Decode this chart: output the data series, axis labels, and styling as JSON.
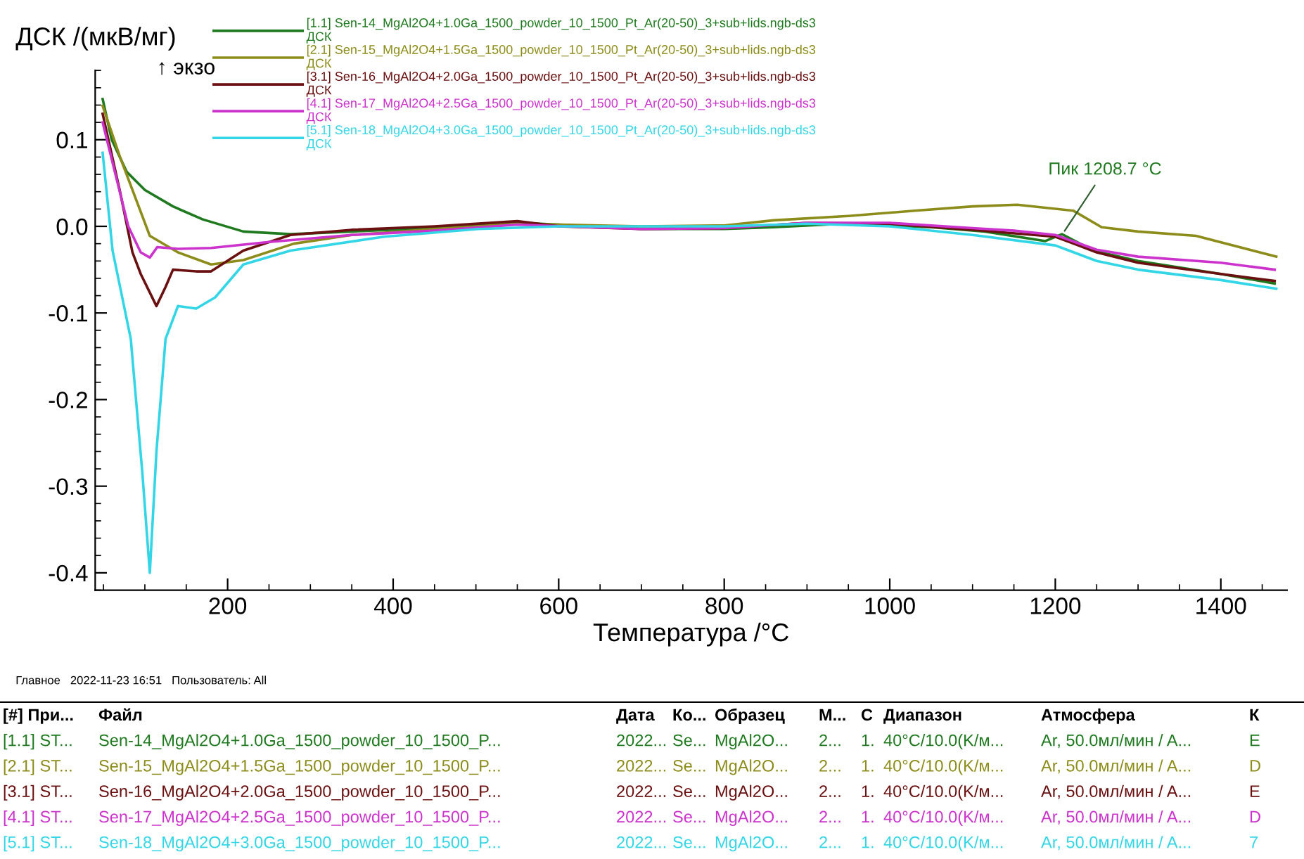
{
  "chart_data": [
    {
      "type": "line",
      "xlabel": "Температура /°C",
      "ylabel": "ДСК /(мкВ/мг)",
      "xlim": [
        40,
        1480
      ],
      "ylim": [
        -0.42,
        0.18
      ],
      "xticks": [
        200,
        400,
        600,
        800,
        1000,
        1200,
        1400
      ],
      "yticks": [
        {
          "value": 0.1,
          "label": "0.1"
        },
        {
          "value": 0.0,
          "label": "0.0"
        },
        {
          "value": -0.1,
          "label": "-0.1"
        },
        {
          "value": -0.2,
          "label": "-0.2"
        },
        {
          "value": -0.3,
          "label": "-0.3"
        },
        {
          "value": -0.4,
          "label": "-0.4"
        }
      ],
      "grid": false,
      "legend": "top",
      "marker": "none",
      "line_style": "solid",
      "annotations": [
        "↑ экзо",
        {
          "text": "Пик 1208.7 °C",
          "x": 1208.7,
          "y": -0.009
        },
        "Главное   2022-11-23 16:51   Пользователь: All"
      ],
      "series": [
        {
          "name": "[1.1] Sen-14_MgAl2O4+1.0Ga_1500_powder_10_1500_Pt_Ar(20-50)_3+sub+lids.ngb-ds3\nДСК",
          "color": "#1f7a1f",
          "x": [
            49,
            60,
            78,
            100,
            134,
            170,
            219,
            276,
            350,
            450,
            550,
            600,
            700,
            800,
            860,
            945,
            1050,
            1115,
            1188,
            1208,
            1246,
            1300,
            1400,
            1465
          ],
          "values": [
            0.147,
            0.1,
            0.063,
            0.042,
            0.023,
            0.008,
            -0.006,
            -0.009,
            -0.006,
            -0.002,
            0.004,
            0.002,
            -0.003,
            -0.003,
            -0.001,
            0.003,
            -0.001,
            -0.006,
            -0.017,
            -0.009,
            -0.028,
            -0.04,
            -0.055,
            -0.066
          ]
        },
        {
          "name": "[2.1] Sen-15_MgAl2O4+1.5Ga_1500_powder_10_1500_Pt_Ar(20-50)_3+sub+lids.ngb-ds3\nДСК",
          "color": "#8c8c1a",
          "x": [
            49,
            70,
            106,
            140,
            180,
            219,
            280,
            350,
            450,
            550,
            700,
            800,
            860,
            950,
            1030,
            1100,
            1154,
            1222,
            1256,
            1300,
            1370,
            1467
          ],
          "values": [
            0.139,
            0.08,
            -0.011,
            -0.03,
            -0.044,
            -0.039,
            -0.02,
            -0.01,
            -0.003,
            0.003,
            0.0,
            0.001,
            0.007,
            0.012,
            0.018,
            0.023,
            0.025,
            0.018,
            -0.001,
            -0.006,
            -0.011,
            -0.035
          ]
        },
        {
          "name": "[3.1] Sen-16_MgAl2O4+2.0Ga_1500_powder_10_1500_Pt_Ar(20-50)_3+sub+lids.ngb-ds3\nДСК",
          "color": "#6b1010",
          "x": [
            49,
            70,
            85,
            95,
            114,
            125,
            134,
            162,
            180,
            219,
            276,
            350,
            450,
            550,
            600,
            700,
            800,
            900,
            1000,
            1100,
            1200,
            1250,
            1300,
            1400,
            1465
          ],
          "values": [
            0.13,
            0.04,
            -0.03,
            -0.055,
            -0.092,
            -0.07,
            -0.05,
            -0.052,
            -0.052,
            -0.028,
            -0.01,
            -0.004,
            0.0,
            0.006,
            0.0,
            -0.003,
            -0.002,
            0.004,
            0.003,
            -0.004,
            -0.012,
            -0.03,
            -0.042,
            -0.055,
            -0.063
          ]
        },
        {
          "name": "[4.1] Sen-17_MgAl2O4+2.5Ga_1500_powder_10_1500_Pt_Ar(20-50)_3+sub+lids.ngb-ds3\nДСК",
          "color": "#cc33cc",
          "x": [
            49,
            80,
            95,
            106,
            115,
            140,
            180,
            250,
            350,
            450,
            550,
            700,
            800,
            900,
            1000,
            1100,
            1150,
            1200,
            1250,
            1300,
            1400,
            1465
          ],
          "values": [
            0.12,
            0.0,
            -0.03,
            -0.036,
            -0.024,
            -0.026,
            -0.025,
            -0.018,
            -0.01,
            -0.005,
            0.002,
            -0.003,
            -0.002,
            0.004,
            0.004,
            -0.002,
            -0.005,
            -0.01,
            -0.027,
            -0.035,
            -0.042,
            -0.05
          ]
        },
        {
          "name": "[5.1] Sen-18_MgAl2O4+3.0Ga_1500_powder_10_1500_Pt_Ar(20-50)_3+sub+lids.ngb-ds3\nДСК",
          "color": "#33d6e6",
          "x": [
            49,
            61,
            83,
            97,
            106,
            114,
            125,
            140,
            162,
            185,
            219,
            276,
            389,
            503,
            600,
            800,
            900,
            1000,
            1100,
            1200,
            1250,
            1300,
            1400,
            1467
          ],
          "values": [
            0.085,
            -0.028,
            -0.13,
            -0.285,
            -0.4,
            -0.26,
            -0.13,
            -0.092,
            -0.095,
            -0.082,
            -0.044,
            -0.028,
            -0.012,
            -0.003,
            0.0,
            0.0,
            0.003,
            0.0,
            -0.01,
            -0.022,
            -0.04,
            -0.05,
            -0.062,
            -0.072
          ]
        }
      ]
    },
    {
      "type": "other",
      "categories": [
        "[#] При...",
        "Файл",
        "Дата",
        "Ко...",
        "Образец",
        "М...",
        "С",
        "Диапазон",
        "Атмосфера",
        "К"
      ],
      "colors": [
        "#1f7a1f",
        "#8c8c1a",
        "#6b1010",
        "#cc33cc",
        "#33d6e6"
      ],
      "cell_labels": [
        [
          "[1.1] ST...",
          "Sen-14_MgAl2O4+1.0Ga_1500_powder_10_1500_P...",
          "2022...",
          "Se...",
          "MgAl2O...",
          "2...",
          "1.",
          "40°C/10.0(K/м...",
          "Ar, 50.0мл/мин / A...",
          "E"
        ],
        [
          "[2.1] ST...",
          "Sen-15_MgAl2O4+1.5Ga_1500_powder_10_1500_P...",
          "2022...",
          "Se...",
          "MgAl2O...",
          "2...",
          "1.",
          "40°C/10.0(K/м...",
          "Ar, 50.0мл/мин / A...",
          "D"
        ],
        [
          "[3.1] ST...",
          "Sen-16_MgAl2O4+2.0Ga_1500_powder_10_1500_P...",
          "2022...",
          "Se...",
          "MgAl2O...",
          "2...",
          "1.",
          "40°C/10.0(K/м...",
          "Ar, 50.0мл/мин / A...",
          "E"
        ],
        [
          "[4.1] ST...",
          "Sen-17_MgAl2O4+2.5Ga_1500_powder_10_1500_P...",
          "2022...",
          "Se...",
          "MgAl2O...",
          "2...",
          "1.",
          "40°C/10.0(K/м...",
          "Ar, 50.0мл/мин / A...",
          "D"
        ],
        [
          "[5.1] ST...",
          "Sen-18_MgAl2O4+3.0Ga_1500_powder_10_1500_P...",
          "2022...",
          "Se...",
          "MgAl2O...",
          "2...",
          "1.",
          "40°C/10.0(K/м...",
          "Ar, 50.0мл/мин / A...",
          "7"
        ]
      ]
    }
  ]
}
